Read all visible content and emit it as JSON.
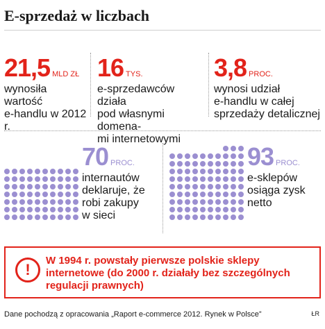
{
  "title": "E-sprzedaż w liczbach",
  "stats": [
    {
      "value": "21,5",
      "unit": "MLD ZŁ",
      "desc": [
        "wynosiła wartość",
        "e-handlu w 2012 r."
      ]
    },
    {
      "value": "16",
      "unit": "TYS.",
      "desc": [
        "e-sprzedawców działa",
        "pod własnymi domena-",
        "mi internetowymi"
      ]
    },
    {
      "value": "3,8",
      "unit": "PROC.",
      "desc": [
        "wynosi udział",
        "e-handlu w całej",
        "sprzedaży detalicznej"
      ]
    }
  ],
  "dot_stats": [
    {
      "value": "70",
      "unit": "PROC.",
      "percent": 70,
      "desc": [
        "internautów",
        "deklaruje, że",
        "robi zakupy",
        "w sieci"
      ]
    },
    {
      "value": "93",
      "unit": "PROC.",
      "percent": 93,
      "desc": [
        "e-sklepów",
        "osiąga zysk",
        "netto"
      ]
    }
  ],
  "note": {
    "icon": "exclamation-icon",
    "lines": [
      "W 1994 r. powstały pierwsze polskie sklepy",
      "internetowe (do 2000 r. działały bez szczególnych",
      "regulacji prawnych)"
    ]
  },
  "source": "Dane pochodzą z opracowania „Raport e-commerce 2012. Rynek w Polsce”",
  "credit": "ŁR",
  "colors": {
    "accent_red": "#e2231a",
    "dot_purple": "#9b8fd1"
  }
}
